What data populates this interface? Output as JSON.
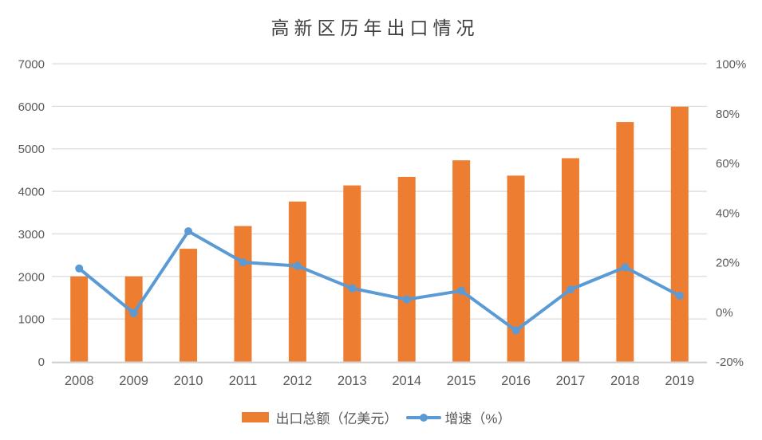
{
  "chart_data": {
    "type": "bar+line",
    "title": "高新区历年出口情况",
    "categories": [
      "2008",
      "2009",
      "2010",
      "2011",
      "2012",
      "2013",
      "2014",
      "2015",
      "2016",
      "2017",
      "2018",
      "2019"
    ],
    "series": [
      {
        "name": "出口总额（亿美元）",
        "type": "bar",
        "axis": "left",
        "color": "#ED7D31",
        "values": [
          2000,
          2000,
          2650,
          3185,
          3760,
          4140,
          4340,
          4730,
          4370,
          4780,
          5630,
          5990
        ]
      },
      {
        "name": "增速（%）",
        "type": "line",
        "axis": "right",
        "color": "#5B9BD5",
        "values": [
          17.5,
          -0.5,
          32.5,
          20,
          18.5,
          9.5,
          5,
          8.5,
          -7.5,
          9,
          18,
          6.5
        ]
      }
    ],
    "left_axis": {
      "min": 0,
      "max": 7000,
      "step": 1000,
      "tick_labels": [
        "0",
        "1000",
        "2000",
        "3000",
        "4000",
        "5000",
        "6000",
        "7000"
      ]
    },
    "right_axis": {
      "min": -20,
      "max": 100,
      "step": 20,
      "tick_labels": [
        "-20%",
        "0%",
        "20%",
        "40%",
        "60%",
        "80%",
        "100%"
      ]
    },
    "grid": true,
    "legend_position": "bottom",
    "colors": {
      "grid": "#DCDCDC",
      "axis_line": "#CFCFCF",
      "tick_text": "#595959",
      "title_text": "#3f3f3f"
    }
  }
}
